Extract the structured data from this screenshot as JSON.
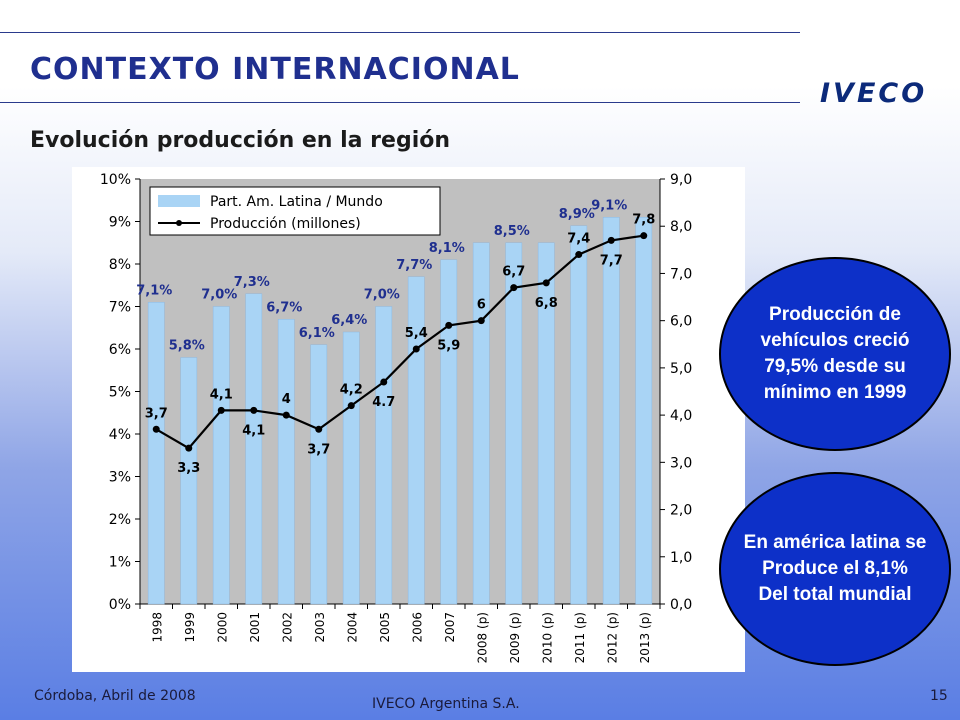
{
  "header": {
    "title": "CONTEXTO INTERNACIONAL",
    "logo_text": "IVECO",
    "subtitle": "Evolución producción en la región"
  },
  "callouts": {
    "oval1": [
      "Producción de",
      "vehículos creció",
      "79,5% desde su",
      "mínimo en 1999"
    ],
    "oval2": [
      "En américa latina se",
      "Produce el 8,1%",
      "Del total mundial"
    ]
  },
  "footer": {
    "left": "Córdoba, Abril de 2008",
    "center": "IVECO Argentina S.A.",
    "page": "15"
  },
  "colors": {
    "title": "#1f2f8f",
    "bar": "#a9d4f5",
    "data_label": "#1f2f8f",
    "plot_bg": "#c0c0c0",
    "oval": "#0d30c8"
  },
  "chart_data": {
    "type": "bar",
    "categories": [
      "1998",
      "1999",
      "2000",
      "2001",
      "2002",
      "2003",
      "2004",
      "2005",
      "2006",
      "2007",
      "2008 (p)",
      "2009 (p)",
      "2010 (p)",
      "2011 (p)",
      "2012 (p)",
      "2013 (p)"
    ],
    "series": [
      {
        "name": "Part. Am. Latina / Mundo",
        "type": "bar",
        "axis": "left",
        "values": [
          7.1,
          5.8,
          7.0,
          7.3,
          6.7,
          6.1,
          6.4,
          7.0,
          7.7,
          8.1,
          8.5,
          8.5,
          8.5,
          8.9,
          9.1,
          9.1
        ],
        "labels": [
          "7,1%",
          "5,8%",
          "7,0%",
          "7,3%",
          "6,7%",
          "6,1%",
          "6,4%",
          "7,0%",
          "7,7%",
          "8,1%",
          "",
          "8,5%",
          "",
          "8,9%",
          "9,1%",
          ""
        ]
      },
      {
        "name": "Producción (millones)",
        "type": "line",
        "axis": "right",
        "values": [
          3.7,
          3.3,
          4.1,
          4.1,
          4.0,
          3.7,
          4.2,
          4.7,
          5.4,
          5.9,
          6.0,
          6.7,
          6.8,
          7.4,
          7.7,
          7.8
        ],
        "labels": [
          "3,7",
          "3,3",
          "4,1",
          "4,1",
          "4",
          "3,7",
          "4,2",
          "4.7",
          "5,4",
          "5,9",
          "6",
          "6,7",
          "6,8",
          "7,4",
          "7,7",
          "7,8"
        ]
      }
    ],
    "y_left": {
      "min": 0,
      "max": 10,
      "ticks": [
        "0%",
        "1%",
        "2%",
        "3%",
        "4%",
        "5%",
        "6%",
        "7%",
        "8%",
        "9%",
        "10%"
      ]
    },
    "y_right": {
      "min": 0,
      "max": 9,
      "ticks": [
        "0,0",
        "1,0",
        "2,0",
        "3,0",
        "4,0",
        "5,0",
        "6,0",
        "7,0",
        "8,0",
        "9,0"
      ]
    },
    "grid": false,
    "legend_position": "top-left"
  }
}
